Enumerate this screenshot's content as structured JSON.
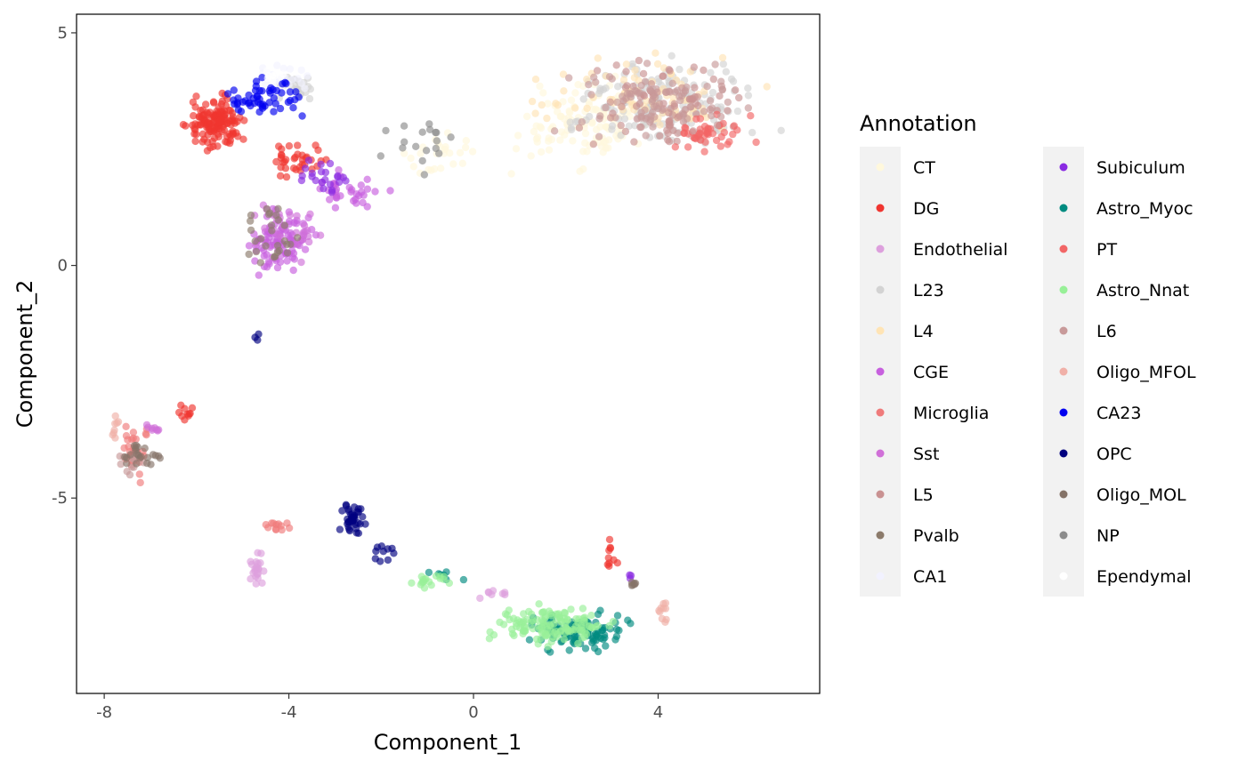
{
  "chart_data": {
    "type": "scatter",
    "xlabel": "Component_1",
    "ylabel": "Component_2",
    "xlim": [
      -8.6,
      7.5
    ],
    "ylim": [
      -9.2,
      5.4
    ],
    "xticks": [
      -8,
      -4,
      0,
      4
    ],
    "yticks": [
      5,
      0,
      -5
    ],
    "xtick_labels": [
      "-8",
      "-4",
      "0",
      "4"
    ],
    "ytick_labels": [
      "5",
      "0",
      "-5"
    ],
    "grid": false,
    "legend_title": "Annotation",
    "legend_position": "right",
    "series": [
      {
        "name": "CT",
        "color": "#FFF8DC",
        "clusters": [
          {
            "x": [
              0.5,
              4.3
            ],
            "y": [
              1.8,
              4.3
            ],
            "n": 120
          },
          {
            "x": [
              -1.8,
              0.5
            ],
            "y": [
              1.7,
              3.0
            ],
            "n": 25
          }
        ]
      },
      {
        "name": "DG",
        "color": "#F03530",
        "clusters": [
          {
            "x": [
              -6.4,
              -4.8
            ],
            "y": [
              2.3,
              3.8
            ],
            "n": 140
          },
          {
            "x": [
              -4.8,
              -3.0
            ],
            "y": [
              1.7,
              2.8
            ],
            "n": 35
          },
          {
            "x": [
              -6.5,
              -6.0
            ],
            "y": [
              -3.4,
              -2.9
            ],
            "n": 10
          },
          {
            "x": [
              2.8,
              3.2
            ],
            "y": [
              -6.6,
              -5.8
            ],
            "n": 10
          }
        ]
      },
      {
        "name": "Endothelial",
        "color": "#DDA0DD",
        "clusters": [
          {
            "x": [
              -4.9,
              -4.5
            ],
            "y": [
              -7.0,
              -6.0
            ],
            "n": 22
          },
          {
            "x": [
              -0.2,
              1.2
            ],
            "y": [
              -7.2,
              -6.9
            ],
            "n": 8
          }
        ]
      },
      {
        "name": "L23",
        "color": "#D3D3D3",
        "clusters": [
          {
            "x": [
              1.5,
              6.9
            ],
            "y": [
              2.2,
              4.7
            ],
            "n": 170
          },
          {
            "x": [
              -4.5,
              -3.3
            ],
            "y": [
              3.5,
              4.2
            ],
            "n": 25
          }
        ]
      },
      {
        "name": "L4",
        "color": "#FFE4B5",
        "clusters": [
          {
            "x": [
              0.3,
              6.8
            ],
            "y": [
              2.6,
              4.7
            ],
            "n": 80
          }
        ]
      },
      {
        "name": "CGE",
        "color": "#C760DE",
        "clusters": [
          {
            "x": [
              -5.2,
              -3.2
            ],
            "y": [
              -0.5,
              1.5
            ],
            "n": 100
          },
          {
            "x": [
              -3.8,
              -1.7
            ],
            "y": [
              1.1,
              2.1
            ],
            "n": 35
          }
        ]
      },
      {
        "name": "Microglia",
        "color": "#EF7B7B",
        "clusters": [
          {
            "x": [
              -7.8,
              -6.9
            ],
            "y": [
              -4.8,
              -3.0
            ],
            "n": 28
          },
          {
            "x": [
              -4.6,
              -3.9
            ],
            "y": [
              -5.8,
              -5.4
            ],
            "n": 12
          }
        ]
      },
      {
        "name": "Sst",
        "color": "#D070D8",
        "clusters": [
          {
            "x": [
              -5.0,
              -3.0
            ],
            "y": [
              0.0,
              1.6
            ],
            "n": 30
          },
          {
            "x": [
              -7.4,
              -6.5
            ],
            "y": [
              -3.7,
              -3.3
            ],
            "n": 8
          }
        ]
      },
      {
        "name": "L5",
        "color": "#C99292",
        "clusters": [
          {
            "x": [
              2.0,
              6.2
            ],
            "y": [
              2.2,
              4.7
            ],
            "n": 90
          }
        ]
      },
      {
        "name": "Pvalb",
        "color": "#8C7B6B",
        "clusters": [
          {
            "x": [
              -5.3,
              -3.5
            ],
            "y": [
              -0.4,
              1.6
            ],
            "n": 28
          }
        ]
      },
      {
        "name": "CA1",
        "color": "#F2F2FF",
        "clusters": [
          {
            "x": [
              -5.0,
              -3.3
            ],
            "y": [
              3.6,
              4.4
            ],
            "n": 30
          }
        ]
      },
      {
        "name": "Subiculum",
        "color": "#8A2BE2",
        "clusters": [
          {
            "x": [
              -4.2,
              -2.0
            ],
            "y": [
              1.3,
              2.4
            ],
            "n": 22
          },
          {
            "x": [
              3.3,
              3.5
            ],
            "y": [
              -6.9,
              -6.5
            ],
            "n": 3
          }
        ]
      },
      {
        "name": "Astro_Myoc",
        "color": "#008B80",
        "clusters": [
          {
            "x": [
              0.8,
              3.8
            ],
            "y": [
              -8.4,
              -7.3
            ],
            "n": 110
          },
          {
            "x": [
              -1.2,
              0.0
            ],
            "y": [
              -6.9,
              -6.4
            ],
            "n": 8
          }
        ]
      },
      {
        "name": "PT",
        "color": "#F26666",
        "clusters": [
          {
            "x": [
              3.8,
              6.4
            ],
            "y": [
              2.3,
              3.4
            ],
            "n": 45
          }
        ]
      },
      {
        "name": "Astro_Nnat",
        "color": "#98F098",
        "clusters": [
          {
            "x": [
              -0.2,
              3.5
            ],
            "y": [
              -8.3,
              -7.2
            ],
            "n": 130
          },
          {
            "x": [
              -1.7,
              0.0
            ],
            "y": [
              -7.0,
              -6.5
            ],
            "n": 18
          }
        ]
      },
      {
        "name": "L6",
        "color": "#C89A9A",
        "clusters": [
          {
            "x": [
              1.5,
              6.5
            ],
            "y": [
              2.4,
              4.6
            ],
            "n": 80
          },
          {
            "x": [
              -7.8,
              -7.0
            ],
            "y": [
              -4.6,
              -3.8
            ],
            "n": 12
          }
        ]
      },
      {
        "name": "Oligo_MFOL",
        "color": "#F0B0A8",
        "clusters": [
          {
            "x": [
              3.8,
              4.4
            ],
            "y": [
              -7.8,
              -7.1
            ],
            "n": 10
          },
          {
            "x": [
              -7.9,
              -7.6
            ],
            "y": [
              -4.1,
              -3.1
            ],
            "n": 8
          }
        ]
      },
      {
        "name": "CA23",
        "color": "#0000F0",
        "clusters": [
          {
            "x": [
              -5.8,
              -3.4
            ],
            "y": [
              3.0,
              4.2
            ],
            "n": 55
          }
        ]
      },
      {
        "name": "OPC",
        "color": "#00007F",
        "clusters": [
          {
            "x": [
              -3.0,
              -2.3
            ],
            "y": [
              -5.9,
              -4.9
            ],
            "n": 40
          },
          {
            "x": [
              -2.4,
              -1.5
            ],
            "y": [
              -6.5,
              -5.9
            ],
            "n": 10
          },
          {
            "x": [
              -4.8,
              -4.6
            ],
            "y": [
              -1.7,
              -1.4
            ],
            "n": 3
          }
        ]
      },
      {
        "name": "Oligo_MOL",
        "color": "#857368",
        "clusters": [
          {
            "x": [
              -7.8,
              -6.6
            ],
            "y": [
              -4.4,
              -3.7
            ],
            "n": 22
          },
          {
            "x": [
              3.3,
              3.6
            ],
            "y": [
              -7.1,
              -6.7
            ],
            "n": 6
          }
        ]
      },
      {
        "name": "NP",
        "color": "#8C8C8C",
        "clusters": [
          {
            "x": [
              -2.2,
              0.0
            ],
            "y": [
              1.9,
              3.3
            ],
            "n": 18
          }
        ]
      },
      {
        "name": "Ependymal",
        "color": "#FFFFFF",
        "clusters": [
          {
            "x": [
              -4.8,
              -3.8
            ],
            "y": [
              3.8,
              4.3
            ],
            "n": 10
          }
        ]
      }
    ]
  }
}
